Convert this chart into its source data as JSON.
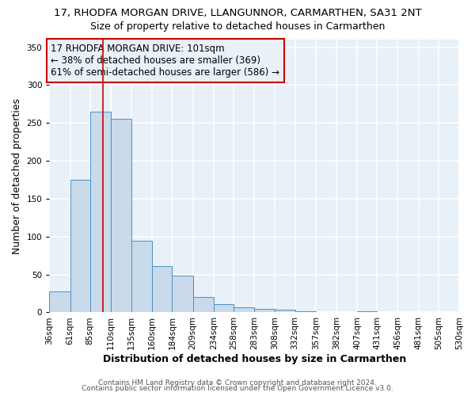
{
  "title": "17, RHODFA MORGAN DRIVE, LLANGUNNOR, CARMARTHEN, SA31 2NT",
  "subtitle": "Size of property relative to detached houses in Carmarthen",
  "xlabel": "Distribution of detached houses by size in Carmarthen",
  "ylabel": "Number of detached properties",
  "bar_color": "#c9daea",
  "bar_edge_color": "#4a90c4",
  "bin_edges": [
    36,
    61,
    85,
    110,
    135,
    160,
    184,
    209,
    234,
    258,
    283,
    308,
    332,
    357,
    382,
    407,
    431,
    456,
    481,
    505,
    530
  ],
  "bin_labels": [
    "36sqm",
    "61sqm",
    "85sqm",
    "110sqm",
    "135sqm",
    "160sqm",
    "184sqm",
    "209sqm",
    "234sqm",
    "258sqm",
    "283sqm",
    "308sqm",
    "332sqm",
    "357sqm",
    "382sqm",
    "407sqm",
    "431sqm",
    "456sqm",
    "481sqm",
    "505sqm",
    "530sqm"
  ],
  "bar_heights": [
    28,
    175,
    265,
    255,
    95,
    61,
    49,
    20,
    11,
    7,
    5,
    4,
    2,
    1,
    0,
    2,
    0,
    1,
    0,
    1
  ],
  "ylim": [
    0,
    360
  ],
  "yticks": [
    0,
    50,
    100,
    150,
    200,
    250,
    300,
    350
  ],
  "property_line_x": 101,
  "property_line_color": "#cc0000",
  "annotation_text": "17 RHODFA MORGAN DRIVE: 101sqm\n← 38% of detached houses are smaller (369)\n61% of semi-detached houses are larger (586) →",
  "annotation_box_edge_color": "#cc0000",
  "footer_line1": "Contains HM Land Registry data © Crown copyright and database right 2024.",
  "footer_line2": "Contains public sector information licensed under the Open Government Licence v3.0.",
  "background_color": "#ffffff",
  "plot_bg_color": "#e8f0f8",
  "grid_color": "#ffffff",
  "title_fontsize": 9.5,
  "subtitle_fontsize": 9,
  "axis_label_fontsize": 9,
  "tick_fontsize": 7.5,
  "annotation_fontsize": 8.5,
  "footer_fontsize": 6.5
}
